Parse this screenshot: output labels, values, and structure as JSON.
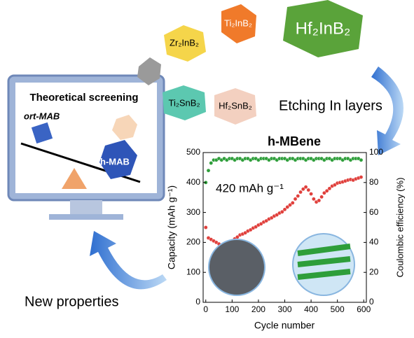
{
  "diagram": {
    "screen_title": "Theoretical screening",
    "ort_label": "ort-MAB",
    "h_label": "h-MAB",
    "hexagons": [
      "Zr₂InB₂",
      "Ti₂InB₂",
      "Hf₂InB₂",
      "Ti₂SnB₂",
      "Hf₂SnB₂"
    ],
    "etching": "Etching In layers",
    "new_properties": "New properties"
  },
  "chart_data": {
    "type": "scatter",
    "title": "h-MBene",
    "annotation": "420 mAh g⁻¹",
    "xlabel": "Cycle number",
    "ylabel": "Capacity (mAh g⁻¹)",
    "y2label": "Coulombic efficiency (%)",
    "x": [
      0,
      10,
      20,
      30,
      40,
      50,
      60,
      70,
      80,
      90,
      100,
      110,
      120,
      130,
      140,
      150,
      160,
      170,
      180,
      190,
      200,
      210,
      220,
      230,
      240,
      250,
      260,
      270,
      280,
      290,
      300,
      310,
      320,
      330,
      340,
      350,
      360,
      370,
      380,
      390,
      400,
      410,
      420,
      430,
      440,
      450,
      460,
      470,
      480,
      490,
      500,
      510,
      520,
      530,
      540,
      550,
      560,
      570,
      580,
      590
    ],
    "series": [
      {
        "color": "#e0403c",
        "values": [
          250,
          215,
          210,
          205,
          200,
          195,
          190,
          188,
          192,
          198,
          205,
          212,
          218,
          225,
          228,
          232,
          238,
          242,
          248,
          252,
          258,
          262,
          268,
          272,
          278,
          282,
          288,
          292,
          298,
          302,
          310,
          318,
          325,
          332,
          345,
          355,
          368,
          378,
          385,
          375,
          362,
          345,
          335,
          340,
          352,
          365,
          372,
          380,
          388,
          392,
          398,
          400,
          402,
          405,
          408,
          410,
          408,
          412,
          415,
          418
        ]
      },
      {
        "color": "#2e9e3a",
        "axis": "y2",
        "values": [
          80,
          88,
          93,
          95,
          95,
          96,
          95,
          96,
          95,
          96,
          96,
          95,
          96,
          96,
          95,
          96,
          96,
          95,
          96,
          96,
          95,
          96,
          96,
          96,
          95,
          96,
          96,
          95,
          96,
          96,
          96,
          95,
          96,
          96,
          95,
          96,
          96,
          96,
          95,
          96,
          96,
          95,
          96,
          96,
          96,
          95,
          96,
          96,
          95,
          96,
          96,
          96,
          95,
          96,
          96,
          95,
          96,
          96,
          96,
          95
        ]
      }
    ],
    "xlim": [
      -10,
      610
    ],
    "xticks": [
      0,
      100,
      200,
      300,
      400,
      500,
      600
    ],
    "ylim": [
      0,
      500
    ],
    "yticks": [
      0,
      100,
      200,
      300,
      400,
      500
    ],
    "y2lim": [
      0,
      100
    ],
    "y2ticks": [
      0,
      20,
      40,
      60,
      80,
      100
    ]
  }
}
